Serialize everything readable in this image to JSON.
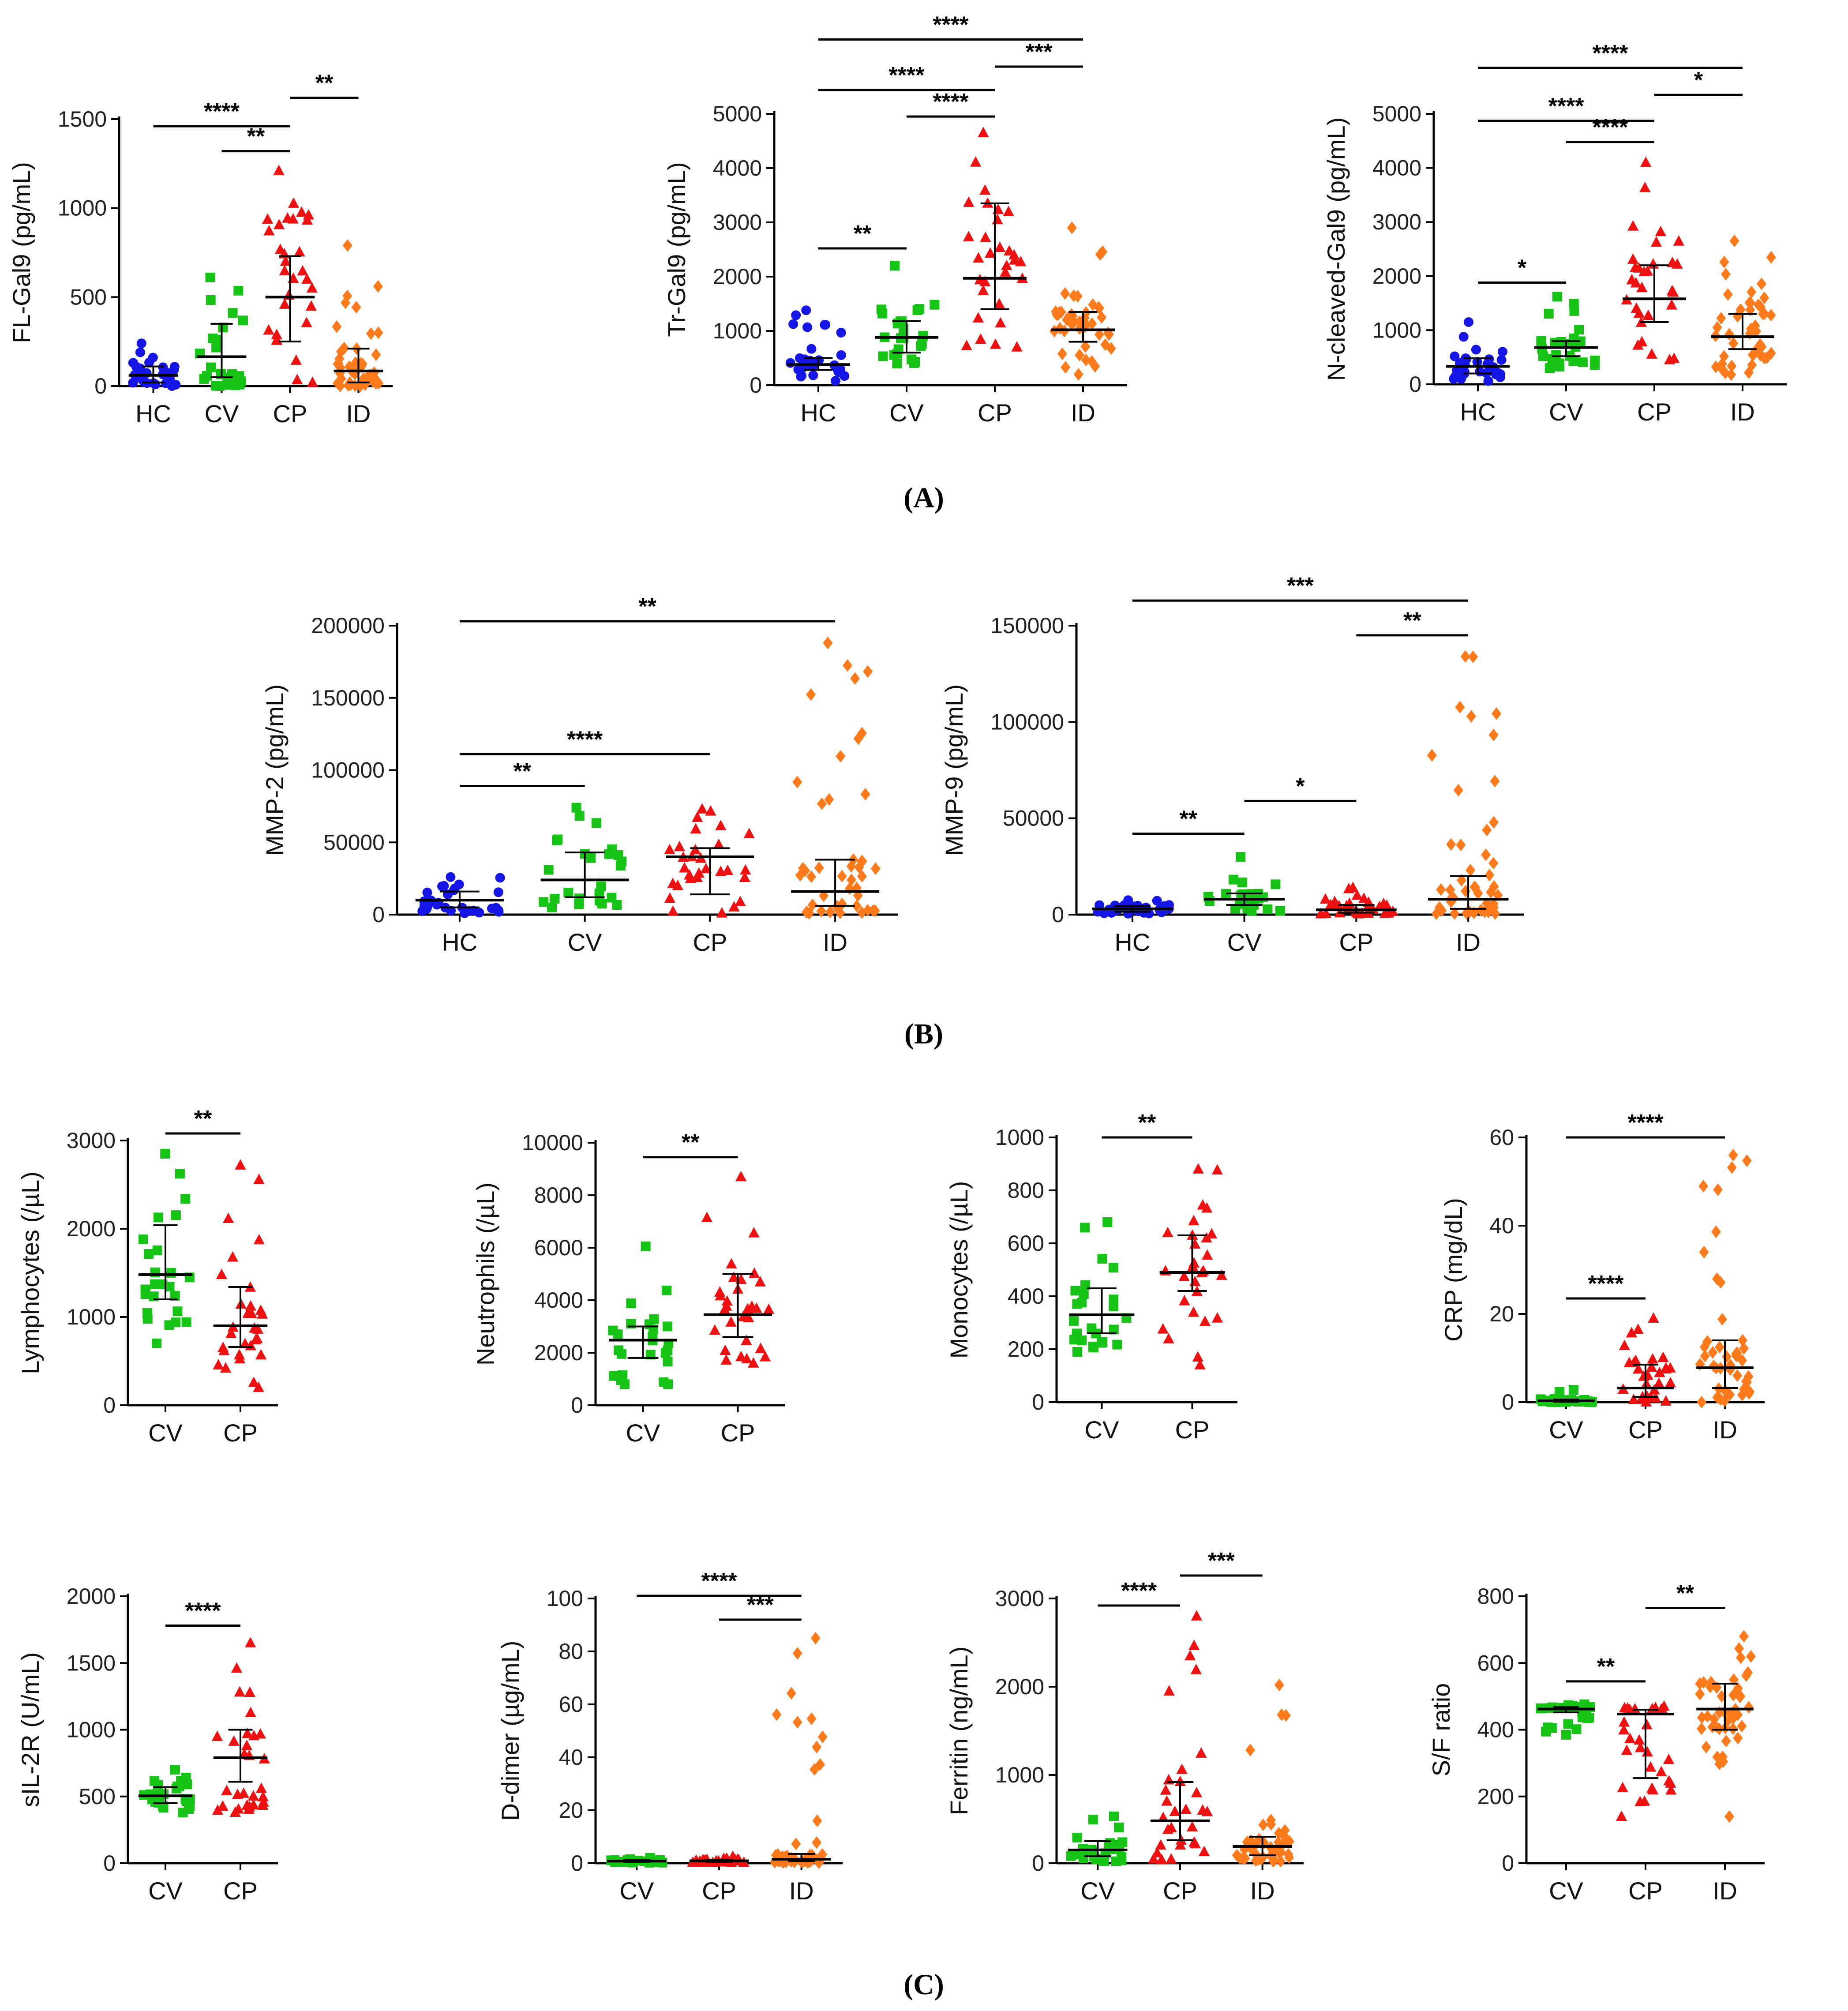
{
  "panel_labels": [
    "(A)",
    "(B)",
    "(C)"
  ],
  "colors": {
    "HC": "#1515e6",
    "CV": "#16c416",
    "CP": "#ee1111",
    "ID": "#ff7a1a"
  },
  "chart_data": [
    {
      "type": "scatter",
      "panel": "A",
      "ylabel": "FL-Gal9 (pg/mL)",
      "ylim": [
        0,
        1500
      ],
      "yticks": [
        0,
        500,
        1000,
        1500
      ],
      "categories": [
        "HC",
        "CV",
        "CP",
        "ID"
      ],
      "groups": [
        {
          "name": "HC",
          "median": 60,
          "q1": 20,
          "q3": 110,
          "n": 30,
          "min": 0,
          "max": 240
        },
        {
          "name": "CV",
          "median": 165,
          "q1": 50,
          "q3": 350,
          "n": 25,
          "min": 0,
          "max": 610
        },
        {
          "name": "CP",
          "median": 500,
          "q1": 250,
          "q3": 730,
          "n": 30,
          "min": 20,
          "max": 1210
        },
        {
          "name": "ID",
          "median": 85,
          "q1": 20,
          "q3": 210,
          "n": 45,
          "min": 0,
          "max": 790
        }
      ],
      "significance": [
        {
          "from": "HC",
          "to": "CP",
          "label": "****",
          "y": 1460
        },
        {
          "from": "CV",
          "to": "CP",
          "label": "**",
          "y": 1320
        },
        {
          "from": "CP",
          "to": "ID",
          "label": "**",
          "y": 1620
        }
      ]
    },
    {
      "type": "scatter",
      "panel": "A",
      "ylabel": "Tr-Gal9 (pg/mL)",
      "ylim": [
        0,
        5000
      ],
      "yticks": [
        0,
        1000,
        2000,
        3000,
        4000,
        5000
      ],
      "categories": [
        "HC",
        "CV",
        "CP",
        "ID"
      ],
      "groups": [
        {
          "name": "HC",
          "median": 380,
          "q1": 280,
          "q3": 500,
          "n": 30,
          "min": 80,
          "max": 1380
        },
        {
          "name": "CV",
          "median": 880,
          "q1": 600,
          "q3": 1180,
          "n": 25,
          "min": 400,
          "max": 2200
        },
        {
          "name": "CP",
          "median": 1970,
          "q1": 1400,
          "q3": 3350,
          "n": 30,
          "min": 700,
          "max": 4650
        },
        {
          "name": "ID",
          "median": 1020,
          "q1": 800,
          "q3": 1350,
          "n": 45,
          "min": 200,
          "max": 2900
        }
      ],
      "significance": [
        {
          "from": "HC",
          "to": "CV",
          "label": "**",
          "y": 2520
        },
        {
          "from": "CV",
          "to": "CP",
          "label": "****",
          "y": 4950
        },
        {
          "from": "HC",
          "to": "CP",
          "label": "****",
          "y": 5440
        },
        {
          "from": "CP",
          "to": "ID",
          "label": "***",
          "y": 5870
        },
        {
          "from": "HC",
          "to": "ID",
          "label": "****",
          "y": 6370
        }
      ]
    },
    {
      "type": "scatter",
      "panel": "A",
      "ylabel": "N-cleaved-Gal9 (pg/mL)",
      "ylim": [
        0,
        5000
      ],
      "yticks": [
        0,
        1000,
        2000,
        3000,
        4000,
        5000
      ],
      "categories": [
        "HC",
        "CV",
        "CP",
        "ID"
      ],
      "groups": [
        {
          "name": "HC",
          "median": 330,
          "q1": 200,
          "q3": 480,
          "n": 30,
          "min": 60,
          "max": 1150
        },
        {
          "name": "CV",
          "median": 680,
          "q1": 520,
          "q3": 800,
          "n": 25,
          "min": 300,
          "max": 1620
        },
        {
          "name": "CP",
          "median": 1580,
          "q1": 1150,
          "q3": 2200,
          "n": 30,
          "min": 450,
          "max": 4100
        },
        {
          "name": "ID",
          "median": 880,
          "q1": 650,
          "q3": 1300,
          "n": 45,
          "min": 180,
          "max": 2650
        }
      ],
      "significance": [
        {
          "from": "HC",
          "to": "CV",
          "label": "*",
          "y": 1880
        },
        {
          "from": "CV",
          "to": "CP",
          "label": "****",
          "y": 4480
        },
        {
          "from": "HC",
          "to": "CP",
          "label": "****",
          "y": 4870
        },
        {
          "from": "CP",
          "to": "ID",
          "label": "*",
          "y": 5350
        },
        {
          "from": "HC",
          "to": "ID",
          "label": "****",
          "y": 5850
        }
      ]
    },
    {
      "type": "scatter",
      "panel": "B",
      "ylabel": "MMP-2 (pg/mL)",
      "ylim": [
        0,
        200000
      ],
      "yticks": [
        0,
        50000,
        100000,
        150000,
        200000
      ],
      "categories": [
        "HC",
        "CV",
        "CP",
        "ID"
      ],
      "groups": [
        {
          "name": "HC",
          "median": 10000,
          "q1": 5000,
          "q3": 16000,
          "n": 30,
          "min": 1000,
          "max": 26000
        },
        {
          "name": "CV",
          "median": 24000,
          "q1": 12000,
          "q3": 43000,
          "n": 25,
          "min": 5000,
          "max": 74000
        },
        {
          "name": "CP",
          "median": 40000,
          "q1": 14000,
          "q3": 46000,
          "n": 30,
          "min": 1000,
          "max": 73000
        },
        {
          "name": "ID",
          "median": 16000,
          "q1": 6000,
          "q3": 38000,
          "n": 45,
          "min": 1000,
          "max": 188000
        }
      ],
      "significance": [
        {
          "from": "HC",
          "to": "CV",
          "label": "**",
          "y": 89000
        },
        {
          "from": "HC",
          "to": "CP",
          "label": "****",
          "y": 111000
        },
        {
          "from": "HC",
          "to": "ID",
          "label": "**",
          "y": 203000
        }
      ]
    },
    {
      "type": "scatter",
      "panel": "B",
      "ylabel": "MMP-9 (pg/mL)",
      "ylim": [
        0,
        150000
      ],
      "yticks": [
        0,
        50000,
        100000,
        150000
      ],
      "categories": [
        "HC",
        "CV",
        "CP",
        "ID"
      ],
      "groups": [
        {
          "name": "HC",
          "median": 3000,
          "q1": 1500,
          "q3": 4500,
          "n": 30,
          "min": 500,
          "max": 7500
        },
        {
          "name": "CV",
          "median": 8000,
          "q1": 5000,
          "q3": 11000,
          "n": 25,
          "min": 2000,
          "max": 30000
        },
        {
          "name": "CP",
          "median": 2500,
          "q1": 1000,
          "q3": 5000,
          "n": 30,
          "min": 300,
          "max": 14000
        },
        {
          "name": "ID",
          "median": 8000,
          "q1": 3000,
          "q3": 20000,
          "n": 45,
          "min": 500,
          "max": 134000
        }
      ],
      "significance": [
        {
          "from": "HC",
          "to": "CV",
          "label": "**",
          "y": 42000
        },
        {
          "from": "CV",
          "to": "CP",
          "label": "*",
          "y": 59000
        },
        {
          "from": "CP",
          "to": "ID",
          "label": "**",
          "y": 145000
        },
        {
          "from": "HC",
          "to": "ID",
          "label": "***",
          "y": 163000
        }
      ]
    },
    {
      "type": "scatter",
      "panel": "C",
      "ylabel": "Lymphocytes (/µL)",
      "ylim": [
        0,
        3000
      ],
      "yticks": [
        0,
        1000,
        2000,
        3000
      ],
      "categories": [
        "CV",
        "CP"
      ],
      "groups": [
        {
          "name": "CV",
          "median": 1480,
          "q1": 1200,
          "q3": 2040,
          "n": 25,
          "min": 700,
          "max": 2850
        },
        {
          "name": "CP",
          "median": 900,
          "q1": 660,
          "q3": 1340,
          "n": 30,
          "min": 200,
          "max": 2720
        }
      ],
      "significance": [
        {
          "from": "CV",
          "to": "CP",
          "label": "**",
          "y": 3080
        }
      ]
    },
    {
      "type": "scatter",
      "panel": "C",
      "ylabel": "Neutrophils (/µL)",
      "ylim": [
        0,
        10000
      ],
      "yticks": [
        0,
        2000,
        4000,
        6000,
        8000,
        10000
      ],
      "categories": [
        "CV",
        "CP"
      ],
      "groups": [
        {
          "name": "CV",
          "median": 2480,
          "q1": 1800,
          "q3": 3000,
          "n": 25,
          "min": 800,
          "max": 6050
        },
        {
          "name": "CP",
          "median": 3450,
          "q1": 2600,
          "q3": 5000,
          "n": 30,
          "min": 1600,
          "max": 8700
        }
      ],
      "significance": [
        {
          "from": "CV",
          "to": "CP",
          "label": "**",
          "y": 9450
        }
      ]
    },
    {
      "type": "scatter",
      "panel": "C",
      "ylabel": "Monocytes (/µL)",
      "ylim": [
        0,
        1000
      ],
      "yticks": [
        0,
        200,
        400,
        600,
        800,
        1000
      ],
      "categories": [
        "CV",
        "CP"
      ],
      "groups": [
        {
          "name": "CV",
          "median": 330,
          "q1": 260,
          "q3": 430,
          "n": 25,
          "min": 190,
          "max": 680
        },
        {
          "name": "CP",
          "median": 490,
          "q1": 420,
          "q3": 630,
          "n": 28,
          "min": 140,
          "max": 880
        }
      ],
      "significance": [
        {
          "from": "CV",
          "to": "CP",
          "label": "**",
          "y": 1000
        }
      ]
    },
    {
      "type": "scatter",
      "panel": "C",
      "ylabel": "CRP (mg/dL)",
      "ylim": [
        0,
        60
      ],
      "yticks": [
        0,
        20,
        40,
        60
      ],
      "categories": [
        "CV",
        "CP",
        "ID"
      ],
      "groups": [
        {
          "name": "CV",
          "median": 0.3,
          "q1": 0.1,
          "q3": 0.6,
          "n": 25,
          "min": 0,
          "max": 2.8
        },
        {
          "name": "CP",
          "median": 3.2,
          "q1": 1.2,
          "q3": 8.5,
          "n": 30,
          "min": 0,
          "max": 19
        },
        {
          "name": "ID",
          "median": 7.8,
          "q1": 3.2,
          "q3": 14,
          "n": 45,
          "min": 0,
          "max": 56
        }
      ],
      "significance": [
        {
          "from": "CV",
          "to": "CP",
          "label": "****",
          "y": 23.5
        },
        {
          "from": "CV",
          "to": "ID",
          "label": "****",
          "y": 60
        }
      ]
    },
    {
      "type": "scatter",
      "panel": "C",
      "ylabel": "sIL-2R (U/mL)",
      "ylim": [
        0,
        2000
      ],
      "yticks": [
        0,
        500,
        1000,
        1500,
        2000
      ],
      "categories": [
        "CV",
        "CP"
      ],
      "groups": [
        {
          "name": "CV",
          "median": 505,
          "q1": 450,
          "q3": 570,
          "n": 25,
          "min": 380,
          "max": 700
        },
        {
          "name": "CP",
          "median": 790,
          "q1": 610,
          "q3": 1000,
          "n": 30,
          "min": 380,
          "max": 1650
        }
      ],
      "significance": [
        {
          "from": "CV",
          "to": "CP",
          "label": "****",
          "y": 1780
        }
      ]
    },
    {
      "type": "scatter",
      "panel": "C",
      "ylabel": "D-dimer (µg/mL)",
      "ylim": [
        0,
        100
      ],
      "yticks": [
        0,
        20,
        40,
        60,
        80,
        100
      ],
      "categories": [
        "CV",
        "CP",
        "ID"
      ],
      "groups": [
        {
          "name": "CV",
          "median": 0.8,
          "q1": 0.5,
          "q3": 1.2,
          "n": 25,
          "min": 0.2,
          "max": 2.0
        },
        {
          "name": "CP",
          "median": 0.9,
          "q1": 0.5,
          "q3": 1.3,
          "n": 30,
          "min": 0.2,
          "max": 2.5
        },
        {
          "name": "ID",
          "median": 1.5,
          "q1": 0.8,
          "q3": 3.5,
          "n": 45,
          "min": 0.2,
          "max": 85
        }
      ],
      "significance": [
        {
          "from": "CP",
          "to": "ID",
          "label": "***",
          "y": 92
        },
        {
          "from": "CV",
          "to": "ID",
          "label": "****",
          "y": 101
        }
      ]
    },
    {
      "type": "scatter",
      "panel": "C",
      "ylabel": "Ferritin (ng/mL)",
      "ylim": [
        0,
        3000
      ],
      "yticks": [
        0,
        1000,
        2000,
        3000
      ],
      "categories": [
        "CV",
        "CP",
        "ID"
      ],
      "groups": [
        {
          "name": "CV",
          "median": 150,
          "q1": 80,
          "q3": 250,
          "n": 25,
          "min": 20,
          "max": 530
        },
        {
          "name": "CP",
          "median": 480,
          "q1": 260,
          "q3": 920,
          "n": 30,
          "min": 40,
          "max": 2800
        },
        {
          "name": "ID",
          "median": 190,
          "q1": 90,
          "q3": 300,
          "n": 45,
          "min": 20,
          "max": 2020
        }
      ],
      "significance": [
        {
          "from": "CV",
          "to": "CP",
          "label": "****",
          "y": 2920
        },
        {
          "from": "CP",
          "to": "ID",
          "label": "***",
          "y": 3260
        }
      ]
    },
    {
      "type": "scatter",
      "panel": "C",
      "ylabel": "S/F ratio",
      "ylim": [
        0,
        800
      ],
      "yticks": [
        0,
        200,
        400,
        600,
        800
      ],
      "categories": [
        "CV",
        "CP",
        "ID"
      ],
      "groups": [
        {
          "name": "CV",
          "median": 462,
          "q1": 452,
          "q3": 468,
          "n": 25,
          "min": 385,
          "max": 476
        },
        {
          "name": "CP",
          "median": 447,
          "q1": 255,
          "q3": 460,
          "n": 30,
          "min": 140,
          "max": 470
        },
        {
          "name": "ID",
          "median": 462,
          "q1": 400,
          "q3": 538,
          "n": 45,
          "min": 140,
          "max": 680
        }
      ],
      "significance": [
        {
          "from": "CV",
          "to": "CP",
          "label": "**",
          "y": 545
        },
        {
          "from": "CP",
          "to": "ID",
          "label": "**",
          "y": 765
        }
      ]
    }
  ]
}
